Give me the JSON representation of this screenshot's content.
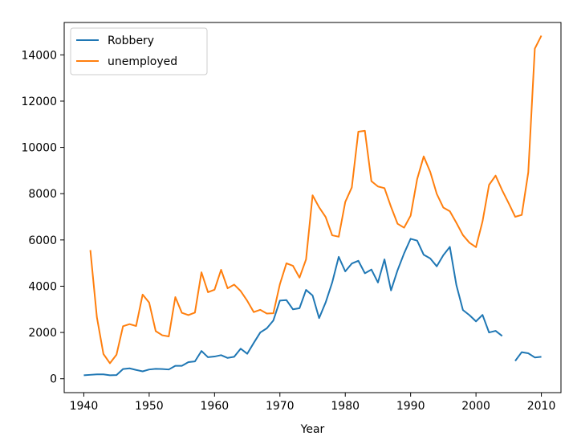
{
  "chart_data": {
    "type": "line",
    "title": "",
    "xlabel": "Year",
    "ylabel": "",
    "xlim": [
      1937,
      2013
    ],
    "ylim": [
      -600,
      15400
    ],
    "xticks": [
      1940,
      1950,
      1960,
      1970,
      1980,
      1990,
      2000,
      2010
    ],
    "yticks": [
      0,
      2000,
      4000,
      6000,
      8000,
      10000,
      12000,
      14000
    ],
    "grid": false,
    "legend_position": "upper-left",
    "series": [
      {
        "name": "Robbery",
        "color": "#1f77b4",
        "x": [
          1940,
          1941,
          1942,
          1943,
          1944,
          1945,
          1946,
          1947,
          1948,
          1949,
          1950,
          1951,
          1952,
          1953,
          1954,
          1955,
          1956,
          1957,
          1958,
          1959,
          1960,
          1961,
          1962,
          1963,
          1964,
          1965,
          1966,
          1967,
          1968,
          1969,
          1970,
          1971,
          1972,
          1973,
          1974,
          1975,
          1976,
          1977,
          1978,
          1979,
          1980,
          1981,
          1982,
          1983,
          1984,
          1985,
          1986,
          1987,
          1988,
          1989,
          1990,
          1991,
          1992,
          1993,
          1994,
          1995,
          1996,
          1997,
          1998,
          1999,
          2000,
          2001,
          2002,
          2003,
          2004,
          2005,
          2006,
          2007,
          2008,
          2009,
          2010
        ],
        "values": [
          150,
          170,
          190,
          190,
          150,
          160,
          420,
          450,
          380,
          320,
          400,
          430,
          420,
          400,
          560,
          560,
          720,
          750,
          1200,
          930,
          960,
          1020,
          900,
          950,
          1300,
          1080,
          1550,
          2000,
          2180,
          2520,
          3380,
          3400,
          3000,
          3050,
          3840,
          3600,
          2620,
          3300,
          4160,
          5270,
          4640,
          4980,
          5100,
          4560,
          4720,
          4160,
          5160,
          3820,
          4690,
          5420,
          6050,
          5970,
          5360,
          5200,
          4860,
          5340,
          5700,
          4050,
          2970,
          2750,
          2480,
          2760,
          2000,
          2070,
          1850,
          null,
          770,
          1150,
          1100,
          920,
          950
        ]
      },
      {
        "name": "unemployed",
        "color": "#ff7f0e",
        "x": [
          1941,
          1942,
          1943,
          1944,
          1945,
          1946,
          1947,
          1948,
          1949,
          1950,
          1951,
          1952,
          1953,
          1954,
          1955,
          1956,
          1957,
          1958,
          1959,
          1960,
          1961,
          1962,
          1963,
          1964,
          1965,
          1966,
          1967,
          1968,
          1969,
          1970,
          1971,
          1972,
          1973,
          1974,
          1975,
          1976,
          1977,
          1978,
          1979,
          1980,
          1981,
          1982,
          1983,
          1984,
          1985,
          1986,
          1987,
          1988,
          1989,
          1990,
          1991,
          1992,
          1993,
          1994,
          1995,
          1996,
          1997,
          1998,
          1999,
          2000,
          2001,
          2002,
          2003,
          2004,
          2005,
          2006,
          2007,
          2008,
          2009,
          2010
        ],
        "values": [
          5560,
          2660,
          1070,
          670,
          1040,
          2270,
          2360,
          2280,
          3640,
          3290,
          2060,
          1880,
          1830,
          3530,
          2850,
          2750,
          2860,
          4600,
          3740,
          3850,
          4710,
          3910,
          4070,
          3790,
          3370,
          2880,
          2980,
          2820,
          2830,
          4090,
          4990,
          4880,
          4370,
          5160,
          7930,
          7410,
          6990,
          6200,
          6140,
          7640,
          8270,
          10680,
          10720,
          8540,
          8310,
          8240,
          7430,
          6700,
          6530,
          7050,
          8630,
          9610,
          8940,
          7990,
          7400,
          7240,
          6740,
          6210,
          5880,
          5690,
          6800,
          8380,
          8780,
          8150,
          7590,
          7000,
          7080,
          8920,
          14270,
          14830
        ]
      }
    ]
  }
}
